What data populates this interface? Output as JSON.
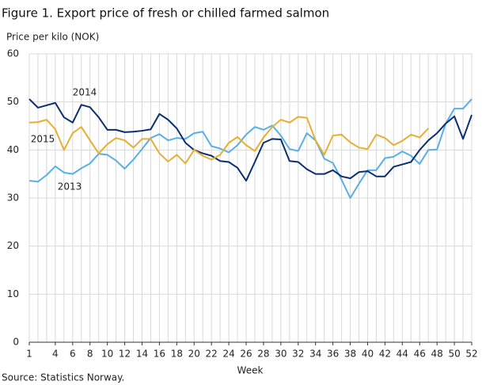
{
  "chart_data": {
    "type": "line",
    "title": "Figure 1. Export price of fresh or chilled farmed salmon",
    "y_label": "Price per kilo (NOK)",
    "x_label": "Week",
    "source": "Source: Statistics Norway.",
    "x": [
      1,
      2,
      3,
      4,
      5,
      6,
      7,
      8,
      9,
      10,
      11,
      12,
      13,
      14,
      15,
      16,
      17,
      18,
      19,
      20,
      21,
      22,
      23,
      24,
      25,
      26,
      27,
      28,
      29,
      30,
      31,
      32,
      33,
      34,
      35,
      36,
      37,
      38,
      39,
      40,
      41,
      42,
      43,
      44,
      45,
      46,
      47,
      48,
      49,
      50,
      51,
      52
    ],
    "xlim": [
      1,
      52
    ],
    "xticks": [
      1,
      4,
      6,
      8,
      10,
      12,
      14,
      16,
      18,
      20,
      22,
      24,
      26,
      28,
      30,
      32,
      34,
      36,
      38,
      40,
      42,
      44,
      46,
      48,
      50,
      52
    ],
    "ylim": [
      0,
      60
    ],
    "yticks": [
      0,
      10,
      20,
      30,
      40,
      50,
      60
    ],
    "grid": true,
    "series": [
      {
        "name": "2013",
        "color": "#5aaee8",
        "values": [
          33.6,
          33.4,
          34.8,
          36.6,
          35.3,
          35.0,
          36.2,
          37.2,
          39.2,
          39.0,
          37.8,
          36.1,
          38.0,
          40.2,
          42.5,
          43.3,
          42.0,
          42.5,
          42.3,
          43.5,
          43.8,
          40.8,
          40.3,
          39.5,
          41.0,
          43.2,
          44.8,
          44.2,
          45.1,
          43.0,
          40.2,
          39.8,
          43.5,
          42.0,
          38.2,
          37.3,
          33.8,
          30.0,
          33.0,
          35.8,
          35.8,
          38.3,
          38.6,
          39.7,
          38.8,
          37.1,
          40.0,
          40.1,
          45.5,
          48.6,
          48.6,
          50.6
        ]
      },
      {
        "name": "2014",
        "color": "#0b2f6e",
        "values": [
          50.6,
          48.8,
          49.3,
          49.8,
          46.8,
          45.7,
          49.4,
          48.9,
          46.8,
          44.2,
          44.2,
          43.7,
          43.8,
          44.0,
          44.3,
          47.5,
          46.3,
          44.5,
          41.5,
          40.0,
          39.3,
          38.8,
          37.7,
          37.5,
          36.3,
          33.6,
          37.5,
          41.5,
          42.3,
          42.2,
          37.7,
          37.5,
          36.0,
          35.0,
          35.0,
          35.8,
          34.5,
          34.1,
          35.4,
          35.6,
          34.5,
          34.5,
          36.5,
          37.0,
          37.5,
          40.0,
          42.0,
          43.5,
          45.5,
          47.0,
          42.3,
          47.3
        ]
      },
      {
        "name": "2015",
        "color": "#e8ae30",
        "values": [
          45.7,
          45.8,
          46.3,
          44.3,
          40.0,
          43.5,
          44.8,
          42.0,
          39.3,
          41.2,
          42.5,
          42.0,
          40.5,
          42.3,
          42.3,
          39.3,
          37.6,
          39.0,
          37.2,
          40.0,
          38.8,
          38.0,
          39.0,
          41.5,
          42.7,
          41.0,
          39.8,
          42.6,
          44.8,
          46.3,
          45.7,
          46.9,
          46.7,
          42.0,
          39.0,
          43.0,
          43.2,
          41.6,
          40.5,
          40.2,
          43.2,
          42.5,
          41.0,
          41.9,
          43.2,
          42.6,
          44.5,
          null,
          null,
          null,
          null,
          null
        ]
      }
    ]
  }
}
